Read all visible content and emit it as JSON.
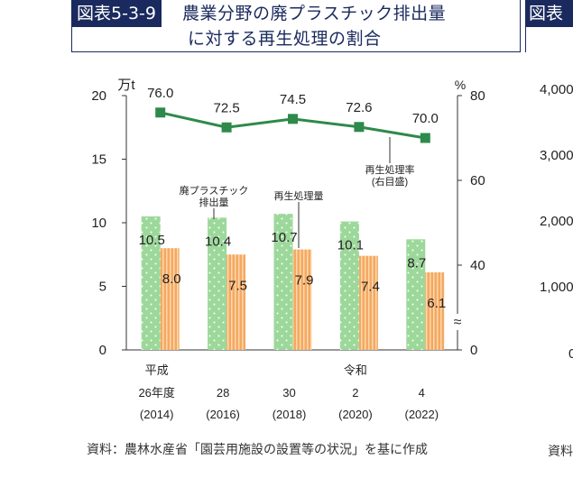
{
  "figure_tag": "図表5-3-9",
  "figure_title_line1": "農業分野の廃プラスチック排出量",
  "figure_title_line2": "に対する再生処理の割合",
  "source_note": "資料：農林水産省「園芸用施設の設置等の状況」を基に作成",
  "right_panel": {
    "tag": "図表",
    "ticks": [
      "4,000",
      "3,000",
      "2,000",
      "1,000",
      "0"
    ],
    "source_fragment": "資料"
  },
  "colors": {
    "emission_bar": "#9dd89b",
    "recycle_bar": "#f3a964",
    "line": "#2e8a4a",
    "header": "#1a2a5e"
  },
  "chart_data": {
    "type": "bar",
    "categories": [
      {
        "era": "平成",
        "year": "26年度",
        "western": "(2014)"
      },
      {
        "era": "",
        "year": "28",
        "western": "(2016)"
      },
      {
        "era": "",
        "year": "30",
        "western": "(2018)"
      },
      {
        "era": "令和",
        "year": "2",
        "western": "(2020)"
      },
      {
        "era": "",
        "year": "4",
        "western": "(2022)"
      }
    ],
    "series": [
      {
        "name": "廃プラスチック排出量",
        "values": [
          10.5,
          10.4,
          10.7,
          10.1,
          8.7
        ],
        "axis": "left"
      },
      {
        "name": "再生処理量",
        "values": [
          8.0,
          7.5,
          7.9,
          7.4,
          6.1
        ],
        "axis": "left"
      },
      {
        "name": "再生処理率(右目盛)",
        "values": [
          76.0,
          72.5,
          74.5,
          72.6,
          70.0
        ],
        "axis": "right",
        "type": "line"
      }
    ],
    "series_labels": {
      "emission": [
        "廃プラスチック",
        "排出量"
      ],
      "recycle": "再生処理量",
      "rate": [
        "再生処理率",
        "(右目盛)"
      ]
    },
    "left_axis": {
      "unit": "万t",
      "ticks": [
        0,
        5,
        10,
        15,
        20
      ],
      "range": [
        0,
        20
      ]
    },
    "right_axis": {
      "unit": "%",
      "ticks": [
        "0",
        "40",
        "60",
        "80"
      ],
      "break": true
    }
  }
}
